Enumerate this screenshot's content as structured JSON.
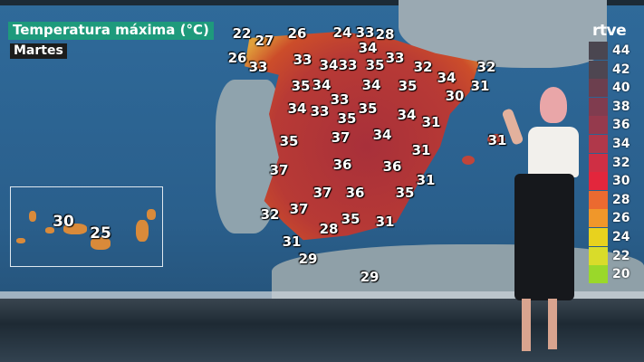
{
  "header": {
    "title": "Temperatura máxima (°C)",
    "day": "Martes"
  },
  "logo": "rtve",
  "legend": {
    "labels": [
      "44",
      "42",
      "40",
      "38",
      "36",
      "34",
      "32",
      "30",
      "28",
      "26",
      "24",
      "22",
      "20"
    ],
    "colors": [
      "#4a4650",
      "#4e4651",
      "#6c3f4e",
      "#803c4f",
      "#953a4d",
      "#b0384a",
      "#cf2f44",
      "#e3263c",
      "#eb6a30",
      "#f0972a",
      "#e8d21e",
      "#d9dc2a",
      "#9ad82a"
    ]
  },
  "map": {
    "peninsula_temps": [
      "22",
      "27",
      "26",
      "24",
      "33",
      "28",
      "34",
      "26",
      "33",
      "33",
      "34",
      "33",
      "35",
      "33",
      "32",
      "32",
      "34",
      "35",
      "34",
      "34",
      "35",
      "31",
      "30",
      "33",
      "34",
      "33",
      "35",
      "35",
      "34",
      "31",
      "31",
      "35",
      "37",
      "34",
      "31",
      "37",
      "36",
      "36",
      "31",
      "35",
      "37",
      "36",
      "32",
      "37",
      "35",
      "31",
      "28",
      "31",
      "29",
      "29"
    ],
    "canarias_temps": [
      "30",
      "25"
    ]
  }
}
